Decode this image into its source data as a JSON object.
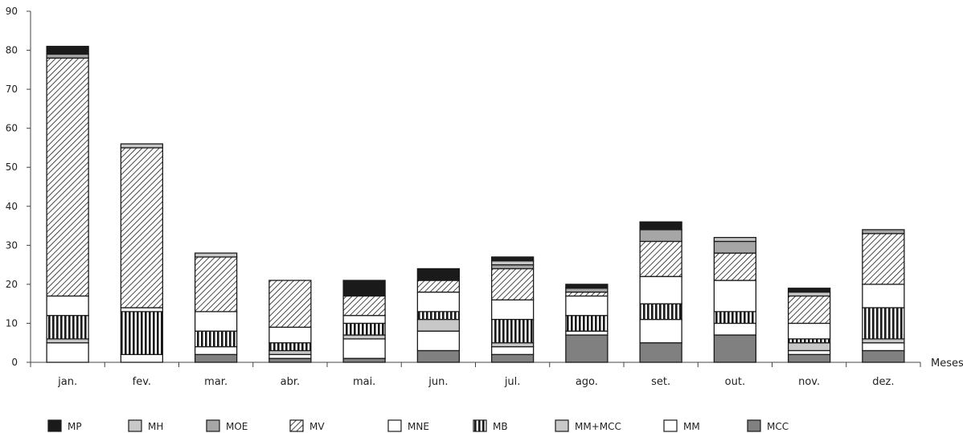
{
  "chart_data": {
    "type": "bar",
    "stacked": true,
    "xlabel": "Meses",
    "ylabel": "",
    "ylim": [
      0,
      90
    ],
    "yticks": [
      "0",
      "10",
      "20",
      "30",
      "40",
      "50",
      "60",
      "70",
      "80",
      "90"
    ],
    "categories": [
      "jan.",
      "fev.",
      "mar.",
      "abr.",
      "mai.",
      "jun.",
      "jul.",
      "ago.",
      "set.",
      "out.",
      "nov.",
      "dez."
    ],
    "stack_order": [
      "MCC",
      "MM",
      "MM+MCC",
      "MB",
      "MNE",
      "MV",
      "MOE",
      "MH",
      "MP"
    ],
    "series": [
      {
        "name": "MCC",
        "pattern": "dark-gray",
        "values": [
          0,
          0,
          2,
          1,
          1,
          3,
          2,
          7,
          5,
          7,
          2,
          3
        ]
      },
      {
        "name": "MM",
        "pattern": "white",
        "values": [
          5,
          2,
          2,
          1,
          5,
          5,
          2,
          1,
          6,
          3,
          1,
          2
        ]
      },
      {
        "name": "MM+MCC",
        "pattern": "light-gray",
        "values": [
          1,
          0,
          0,
          1,
          1,
          3,
          1,
          0,
          0,
          0,
          2,
          1
        ]
      },
      {
        "name": "MB",
        "pattern": "vertical",
        "values": [
          6,
          11,
          4,
          2,
          3,
          2,
          6,
          4,
          4,
          3,
          1,
          8
        ]
      },
      {
        "name": "MNE",
        "pattern": "white",
        "values": [
          5,
          1,
          5,
          4,
          2,
          5,
          5,
          5,
          7,
          8,
          4,
          6
        ]
      },
      {
        "name": "MV",
        "pattern": "diagonal",
        "values": [
          61,
          41,
          14,
          12,
          5,
          3,
          8,
          1,
          9,
          7,
          7,
          13
        ]
      },
      {
        "name": "MOE",
        "pattern": "medium-gray",
        "values": [
          1,
          0,
          0,
          0,
          0,
          0,
          1,
          1,
          3,
          3,
          0,
          1
        ]
      },
      {
        "name": "MH",
        "pattern": "light-gray",
        "values": [
          0,
          1,
          1,
          0,
          0,
          0,
          1,
          0,
          0,
          1,
          1,
          0
        ]
      },
      {
        "name": "MP",
        "pattern": "black",
        "values": [
          2,
          0,
          0,
          0,
          4,
          3,
          1,
          1,
          2,
          0,
          1,
          0
        ]
      }
    ],
    "legend": {
      "placement": "bottom",
      "items": [
        "MP",
        "MH",
        "MOE",
        "MV",
        "MNE",
        "MB",
        "MM+MCC",
        "MM",
        "MCC"
      ]
    },
    "grid": false
  },
  "colors": {
    "black": "#1a1a1a",
    "dark-gray": "#808080",
    "medium-gray": "#a6a6a6",
    "light-gray": "#c8c8c8",
    "white": "#ffffff",
    "very-light": "#f2f2f2",
    "stroke": "#1a1a1a"
  }
}
